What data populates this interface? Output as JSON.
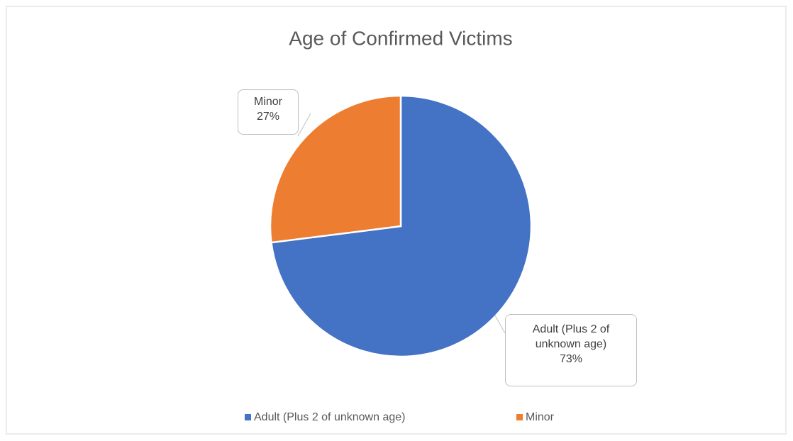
{
  "chart_data": {
    "type": "pie",
    "title": "Age  of Confirmed Victims",
    "categories": [
      "Adult (Plus 2 of unknown age)",
      "Minor"
    ],
    "values": [
      73,
      27
    ],
    "value_labels": [
      "73%",
      "27%"
    ],
    "colors": [
      "#4472c4",
      "#ed7d31"
    ],
    "legend": "bottom"
  }
}
